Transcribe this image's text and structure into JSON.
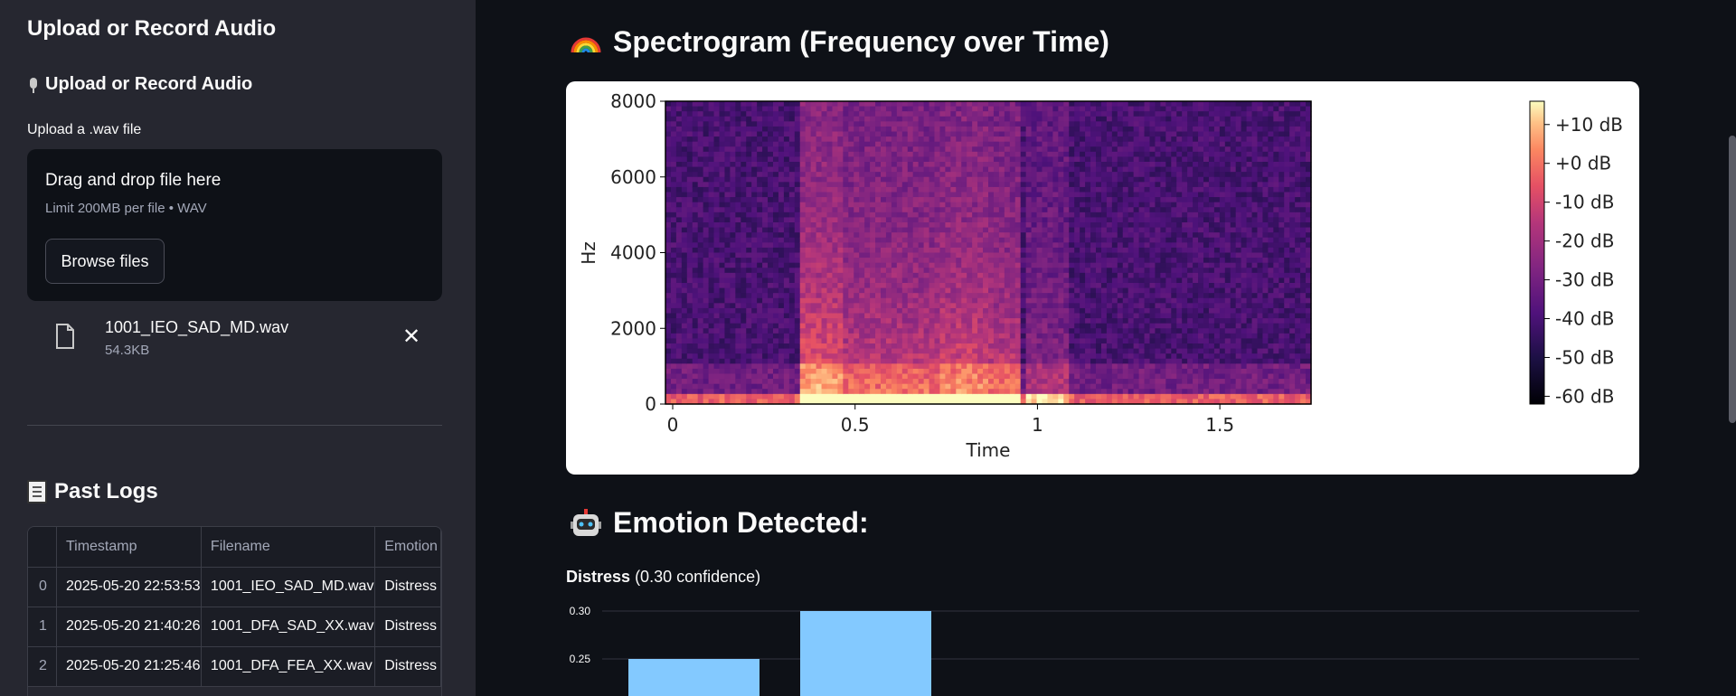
{
  "sidebar": {
    "title": "Upload or Record Audio",
    "subheader": "Upload or Record Audio",
    "uploader": {
      "label": "Upload a .wav file",
      "dropzone_title": "Drag and drop file here",
      "limit": "Limit 200MB per file • WAV",
      "browse_label": "Browse files"
    },
    "uploaded_file": {
      "name": "1001_IEO_SAD_MD.wav",
      "size": "54.3KB",
      "close_glyph": "✕"
    },
    "logs": {
      "title": "Past Logs",
      "columns": [
        "",
        "Timestamp",
        "Filename",
        "Emotion"
      ],
      "rows": [
        [
          "0",
          "2025-05-20 22:53:53",
          "1001_IEO_SAD_MD.wav",
          "Distress"
        ],
        [
          "1",
          "2025-05-20 21:40:26",
          "1001_DFA_SAD_XX.wav",
          "Distress"
        ],
        [
          "2",
          "2025-05-20 21:25:46",
          "1001_DFA_FEA_XX.wav",
          "Distress"
        ]
      ]
    }
  },
  "main": {
    "spectrogram_heading": "Spectrogram (Frequency over Time)",
    "emotion_heading": "Emotion Detected:",
    "result": {
      "label": "Distress",
      "confidence_text": "(0.30 confidence)"
    }
  },
  "icons": {
    "mic": "microphone-icon",
    "file": "file-icon",
    "close": "close-icon",
    "scroll": "scroll-icon",
    "rainbow": "rainbow-icon",
    "robot": "robot-icon"
  },
  "colors": {
    "sidebar_bg": "#262730",
    "app_bg": "#0e1117",
    "bar_color": "#83c9ff"
  },
  "chart_data": [
    {
      "type": "heatmap",
      "title": "",
      "xlabel": "Time",
      "ylabel": "Hz",
      "xlim": [
        0,
        1.75
      ],
      "ylim": [
        0,
        8000
      ],
      "xticks": [
        "0",
        "0.5",
        "1",
        "1.5"
      ],
      "xtick_values": [
        0,
        0.5,
        1,
        1.5
      ],
      "yticks": [
        "0",
        "2000",
        "4000",
        "6000",
        "8000"
      ],
      "ytick_values": [
        0,
        2000,
        4000,
        6000,
        8000
      ],
      "colorbar": {
        "ticks": [
          "+10 dB",
          "+0 dB",
          "-10 dB",
          "-20 dB",
          "-30 dB",
          "-40 dB",
          "-50 dB",
          "-60 dB"
        ],
        "tick_values": [
          10,
          0,
          -10,
          -20,
          -30,
          -40,
          -50,
          -60
        ],
        "range": [
          -62,
          16
        ],
        "colormap": "magma"
      }
    },
    {
      "type": "bar",
      "title": "",
      "categories": [
        "",
        ""
      ],
      "values": [
        0.25,
        0.3
      ],
      "yticks": [
        "0.30",
        "0.25"
      ],
      "ytick_values": [
        0.3,
        0.25
      ],
      "color": "#83c9ff"
    }
  ]
}
